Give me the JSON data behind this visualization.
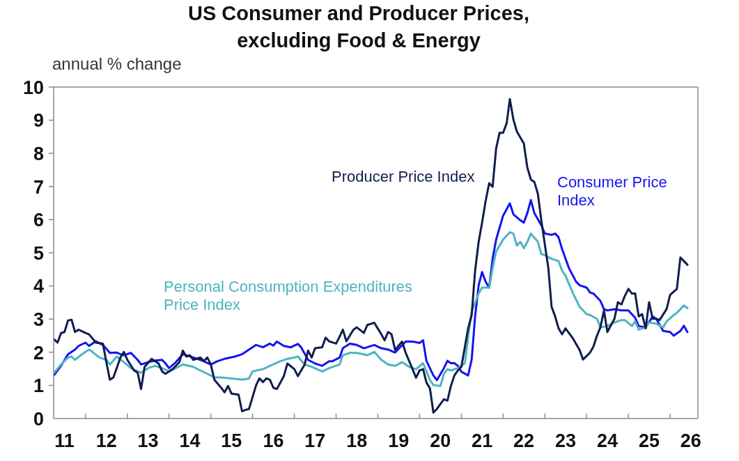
{
  "chart_data": {
    "type": "line",
    "title": "US Consumer and Producer Prices,\nexcluding Food & Energy",
    "ylabel": "annual % change",
    "xlim": [
      "2011-03-28",
      "2026-09"
    ],
    "xticks": [
      {
        "value": "2011-07",
        "label": "11"
      },
      {
        "value": "2012-01",
        "label": null
      },
      {
        "value": "2012-07",
        "label": "12"
      },
      {
        "value": "2013-01",
        "label": null
      },
      {
        "value": "2013-07",
        "label": "13"
      },
      {
        "value": "2014-01",
        "label": null
      },
      {
        "value": "2014-07",
        "label": "14"
      },
      {
        "value": "2015-01",
        "label": null
      },
      {
        "value": "2015-07",
        "label": "15"
      },
      {
        "value": "2016-01",
        "label": null
      },
      {
        "value": "2016-07",
        "label": "16"
      },
      {
        "value": "2017-01",
        "label": null
      },
      {
        "value": "2017-07",
        "label": "17"
      },
      {
        "value": "2018-01",
        "label": null
      },
      {
        "value": "2018-07",
        "label": "18"
      },
      {
        "value": "2019-01",
        "label": null
      },
      {
        "value": "2019-07",
        "label": "19"
      },
      {
        "value": "2020-01",
        "label": null
      },
      {
        "value": "2020-07",
        "label": "20"
      },
      {
        "value": "2021-01",
        "label": null
      },
      {
        "value": "2021-07",
        "label": "21"
      },
      {
        "value": "2022-01",
        "label": null
      },
      {
        "value": "2022-07",
        "label": "22"
      },
      {
        "value": "2023-01",
        "label": null
      },
      {
        "value": "2023-07",
        "label": "23"
      },
      {
        "value": "2024-01",
        "label": null
      },
      {
        "value": "2024-07",
        "label": "24"
      },
      {
        "value": "2025-01",
        "label": null
      },
      {
        "value": "2025-07",
        "label": "25"
      },
      {
        "value": "2026-01",
        "label": null
      },
      {
        "value": "2026-07",
        "label": "26"
      }
    ],
    "ylim": [
      0,
      10
    ],
    "yticks": [
      0,
      1,
      2,
      3,
      4,
      5,
      6,
      7,
      8,
      9,
      10
    ],
    "series": [
      {
        "name": "Consumer Price Index",
        "color": "#1414f2",
        "x": [
          "2011-04",
          "2011-06",
          "2011-08",
          "2011-10",
          "2011-11",
          "2012-01",
          "2012-02",
          "2012-04",
          "2012-06",
          "2012-08",
          "2012-10",
          "2012-11",
          "2012-12",
          "2013-02",
          "2013-04",
          "2013-05",
          "2013-07",
          "2013-09",
          "2013-11",
          "2013-12",
          "2014-01",
          "2014-03",
          "2014-05",
          "2014-08",
          "2014-10",
          "2015-01",
          "2015-03",
          "2015-05",
          "2015-08",
          "2015-10",
          "2015-12",
          "2016-02",
          "2016-04",
          "2016-06",
          "2016-07",
          "2016-08",
          "2016-10",
          "2016-12",
          "2017-02",
          "2017-03",
          "2017-05",
          "2017-07",
          "2017-09",
          "2017-11",
          "2017-12",
          "2018-02",
          "2018-03",
          "2018-05",
          "2018-07",
          "2018-09",
          "2018-10",
          "2018-12",
          "2019-02",
          "2019-04",
          "2019-06",
          "2019-09",
          "2019-11",
          "2020-01",
          "2020-02",
          "2020-03",
          "2020-05",
          "2020-06",
          "2020-08",
          "2020-09",
          "2020-10",
          "2020-11",
          "2020-12",
          "2021-01",
          "2021-03",
          "2021-04",
          "2021-05",
          "2021-06",
          "2021-07",
          "2021-08",
          "2021-09",
          "2021-10",
          "2021-11",
          "2022-01",
          "2022-03",
          "2022-04",
          "2022-06",
          "2022-07",
          "2022-08",
          "2022-09",
          "2022-10",
          "2022-12",
          "2023-01",
          "2023-03",
          "2023-04",
          "2023-05",
          "2023-06",
          "2023-07",
          "2023-08",
          "2023-10",
          "2023-11",
          "2024-01",
          "2024-02",
          "2024-03",
          "2024-05",
          "2024-06",
          "2024-07",
          "2024-09",
          "2024-11",
          "2025-01",
          "2025-03",
          "2025-04",
          "2025-06",
          "2025-08",
          "2025-09",
          "2025-10",
          "2025-11",
          "2026-01",
          "2026-02",
          "2026-04",
          "2026-05",
          "2026-06"
        ],
        "values": [
          1.31,
          1.59,
          1.94,
          2.08,
          2.19,
          2.29,
          2.19,
          2.33,
          2.22,
          1.98,
          1.99,
          1.94,
          1.91,
          1.98,
          1.77,
          1.63,
          1.7,
          1.75,
          1.77,
          1.66,
          1.52,
          1.7,
          1.94,
          1.84,
          1.77,
          1.63,
          1.73,
          1.8,
          1.87,
          1.94,
          2.08,
          2.22,
          2.15,
          2.26,
          2.2,
          2.32,
          2.19,
          2.15,
          2.25,
          2.15,
          1.77,
          1.66,
          1.59,
          1.73,
          1.73,
          1.84,
          2.12,
          2.26,
          2.22,
          2.12,
          2.15,
          2.22,
          2.12,
          2.08,
          1.99,
          2.32,
          2.32,
          2.28,
          2.36,
          1.74,
          1.3,
          1.16,
          1.52,
          1.74,
          1.67,
          1.67,
          1.59,
          1.41,
          1.3,
          1.78,
          3.08,
          4.02,
          4.42,
          4.13,
          3.95,
          4.82,
          5.4,
          6.12,
          6.49,
          6.16,
          5.98,
          5.91,
          6.2,
          6.59,
          6.2,
          5.83,
          5.58,
          5.54,
          5.58,
          5.47,
          5.11,
          4.82,
          4.53,
          4.13,
          4.02,
          3.95,
          3.8,
          3.77,
          3.55,
          3.3,
          3.26,
          3.3,
          3.26,
          3.26,
          3.04,
          2.79,
          2.75,
          3.08,
          3.01,
          2.83,
          2.64,
          2.61,
          2.5,
          2.64,
          2.8,
          2.61
        ]
      },
      {
        "name": "Personal Consumption Expenditures Price Index",
        "color": "#4db4c2",
        "x": [
          "2011-04",
          "2011-06",
          "2011-08",
          "2011-09",
          "2011-10",
          "2011-12",
          "2012-02",
          "2012-03",
          "2012-05",
          "2012-07",
          "2012-08",
          "2012-10",
          "2012-12",
          "2013-02",
          "2013-05",
          "2013-07",
          "2013-09",
          "2013-11",
          "2014-01",
          "2014-03",
          "2014-05",
          "2014-08",
          "2014-10",
          "2014-12",
          "2015-02",
          "2015-04",
          "2015-07",
          "2015-10",
          "2015-12",
          "2016-01",
          "2016-04",
          "2016-06",
          "2016-09",
          "2016-11",
          "2017-01",
          "2017-02",
          "2017-04",
          "2017-06",
          "2017-09",
          "2017-11",
          "2018-02",
          "2018-03",
          "2018-05",
          "2018-07",
          "2018-10",
          "2018-12",
          "2019-02",
          "2019-04",
          "2019-06",
          "2019-08",
          "2019-10",
          "2019-12",
          "2020-02",
          "2020-04",
          "2020-05",
          "2020-07",
          "2020-08",
          "2020-09",
          "2020-10",
          "2020-12",
          "2021-02",
          "2021-03",
          "2021-04",
          "2021-06",
          "2021-07",
          "2021-09",
          "2021-10",
          "2021-11",
          "2022-01",
          "2022-03",
          "2022-04",
          "2022-05",
          "2022-06",
          "2022-07",
          "2022-08",
          "2022-09",
          "2022-11",
          "2022-12",
          "2023-01",
          "2023-03",
          "2023-05",
          "2023-06",
          "2023-07",
          "2023-09",
          "2023-11",
          "2024-01",
          "2024-02",
          "2024-04",
          "2024-05",
          "2024-07",
          "2024-09",
          "2024-11",
          "2024-12",
          "2025-02",
          "2025-03",
          "2025-04",
          "2025-06",
          "2025-07",
          "2025-09",
          "2025-11",
          "2025-12",
          "2026-02",
          "2026-03",
          "2026-04",
          "2026-05",
          "2026-06"
        ],
        "values": [
          1.38,
          1.63,
          1.84,
          1.87,
          1.77,
          1.94,
          2.08,
          2.01,
          1.84,
          1.77,
          1.63,
          1.87,
          1.7,
          1.52,
          1.38,
          1.52,
          1.59,
          1.52,
          1.42,
          1.52,
          1.63,
          1.56,
          1.45,
          1.35,
          1.24,
          1.24,
          1.21,
          1.17,
          1.21,
          1.42,
          1.49,
          1.59,
          1.73,
          1.8,
          1.84,
          1.87,
          1.63,
          1.56,
          1.42,
          1.52,
          1.63,
          1.91,
          1.98,
          1.98,
          1.91,
          2.01,
          1.77,
          1.63,
          1.59,
          1.7,
          1.56,
          1.49,
          1.67,
          1.16,
          1.01,
          0.98,
          1.34,
          1.49,
          1.45,
          1.52,
          1.67,
          2.46,
          3.22,
          3.77,
          3.95,
          3.95,
          4.53,
          5.04,
          5.4,
          5.62,
          5.58,
          5.22,
          5.33,
          5.14,
          5.33,
          5.58,
          5.33,
          4.96,
          4.93,
          4.82,
          4.75,
          4.46,
          4.31,
          3.8,
          3.37,
          3.15,
          3.12,
          3.01,
          2.75,
          2.79,
          2.9,
          2.97,
          2.97,
          2.79,
          2.93,
          2.68,
          2.75,
          2.9,
          2.86,
          2.75,
          2.93,
          3.12,
          3.19,
          3.3,
          3.41,
          3.33
        ]
      },
      {
        "name": "Producer Price Index",
        "color": "#101d4e",
        "x": [
          "2011-04",
          "2011-05",
          "2011-06",
          "2011-07",
          "2011-08",
          "2011-09",
          "2011-10",
          "2011-11",
          "2012-01",
          "2012-02",
          "2012-04",
          "2012-06",
          "2012-07",
          "2012-08",
          "2012-09",
          "2012-11",
          "2012-12",
          "2013-01",
          "2013-03",
          "2013-04",
          "2013-05",
          "2013-06",
          "2013-08",
          "2013-09",
          "2013-10",
          "2013-11",
          "2013-12",
          "2014-02",
          "2014-04",
          "2014-05",
          "2014-06",
          "2014-07",
          "2014-08",
          "2014-10",
          "2014-11",
          "2014-12",
          "2015-01",
          "2015-02",
          "2015-04",
          "2015-05",
          "2015-06",
          "2015-07",
          "2015-09",
          "2015-10",
          "2015-11",
          "2015-12",
          "2016-02",
          "2016-03",
          "2016-04",
          "2016-05",
          "2016-06",
          "2016-07",
          "2016-08",
          "2016-10",
          "2016-11",
          "2017-01",
          "2017-02",
          "2017-04",
          "2017-05",
          "2017-06",
          "2017-07",
          "2017-09",
          "2017-10",
          "2017-11",
          "2018-01",
          "2018-02",
          "2018-03",
          "2018-04",
          "2018-06",
          "2018-07",
          "2018-09",
          "2018-10",
          "2018-12",
          "2019-02",
          "2019-03",
          "2019-04",
          "2019-05",
          "2019-06",
          "2019-08",
          "2019-09",
          "2019-11",
          "2019-12",
          "2020-01",
          "2020-02",
          "2020-03",
          "2020-04",
          "2020-05",
          "2020-06",
          "2020-08",
          "2020-09",
          "2020-10",
          "2020-11",
          "2020-12",
          "2021-01",
          "2021-03",
          "2021-04",
          "2021-05",
          "2021-06",
          "2021-07",
          "2021-08",
          "2021-09",
          "2021-10",
          "2021-11",
          "2021-12",
          "2022-01",
          "2022-02",
          "2022-03",
          "2022-04",
          "2022-05",
          "2022-07",
          "2022-08",
          "2022-09",
          "2022-10",
          "2022-11",
          "2022-12",
          "2023-01",
          "2023-02",
          "2023-03",
          "2023-04",
          "2023-05",
          "2023-06",
          "2023-07",
          "2023-09",
          "2023-11",
          "2023-12",
          "2024-02",
          "2024-03",
          "2024-04",
          "2024-05",
          "2024-06",
          "2024-07",
          "2024-09",
          "2024-10",
          "2024-11",
          "2024-12",
          "2025-01",
          "2025-02",
          "2025-03",
          "2025-04",
          "2025-05",
          "2025-06",
          "2025-07",
          "2025-08",
          "2025-09",
          "2025-10",
          "2025-12",
          "2026-01",
          "2026-03",
          "2026-04",
          "2026-05",
          "2026-06"
        ],
        "values": [
          2.39,
          2.29,
          2.58,
          2.61,
          2.96,
          2.98,
          2.61,
          2.68,
          2.58,
          2.54,
          2.29,
          2.26,
          1.7,
          1.17,
          1.24,
          1.84,
          2.01,
          1.77,
          1.45,
          1.38,
          0.89,
          1.56,
          1.8,
          1.73,
          1.66,
          1.42,
          1.35,
          1.49,
          1.7,
          2.05,
          1.87,
          1.91,
          1.77,
          1.84,
          1.73,
          1.84,
          1.63,
          1.17,
          0.93,
          0.79,
          0.98,
          0.75,
          0.72,
          0.22,
          0.26,
          0.29,
          1.0,
          1.21,
          1.1,
          1.21,
          1.17,
          0.93,
          0.89,
          1.28,
          1.66,
          1.49,
          1.28,
          1.63,
          2.05,
          1.84,
          2.12,
          2.15,
          2.44,
          2.33,
          2.26,
          2.47,
          2.68,
          2.33,
          2.68,
          2.75,
          2.58,
          2.82,
          2.89,
          2.54,
          2.36,
          2.61,
          2.54,
          2.07,
          2.32,
          1.99,
          1.49,
          1.23,
          1.45,
          1.49,
          1.09,
          0.91,
          0.18,
          0.29,
          0.58,
          0.54,
          0.98,
          1.3,
          1.45,
          1.56,
          2.72,
          3.12,
          4.46,
          5.33,
          5.91,
          6.56,
          7.1,
          6.99,
          8.15,
          8.62,
          8.62,
          8.91,
          9.64,
          9.02,
          8.66,
          8.3,
          7.57,
          7.21,
          7.14,
          6.78,
          5.98,
          5.25,
          4.53,
          3.37,
          3.08,
          2.72,
          2.54,
          2.72,
          2.43,
          2.07,
          1.78,
          1.99,
          2.17,
          2.5,
          2.75,
          3.26,
          2.61,
          3.01,
          3.51,
          3.44,
          3.7,
          3.91,
          3.77,
          3.77,
          3.08,
          3.15,
          2.72,
          3.51,
          3.01,
          3.01,
          2.97,
          3.3,
          3.73,
          3.91,
          4.86,
          4.75,
          4.64
        ]
      }
    ]
  }
}
